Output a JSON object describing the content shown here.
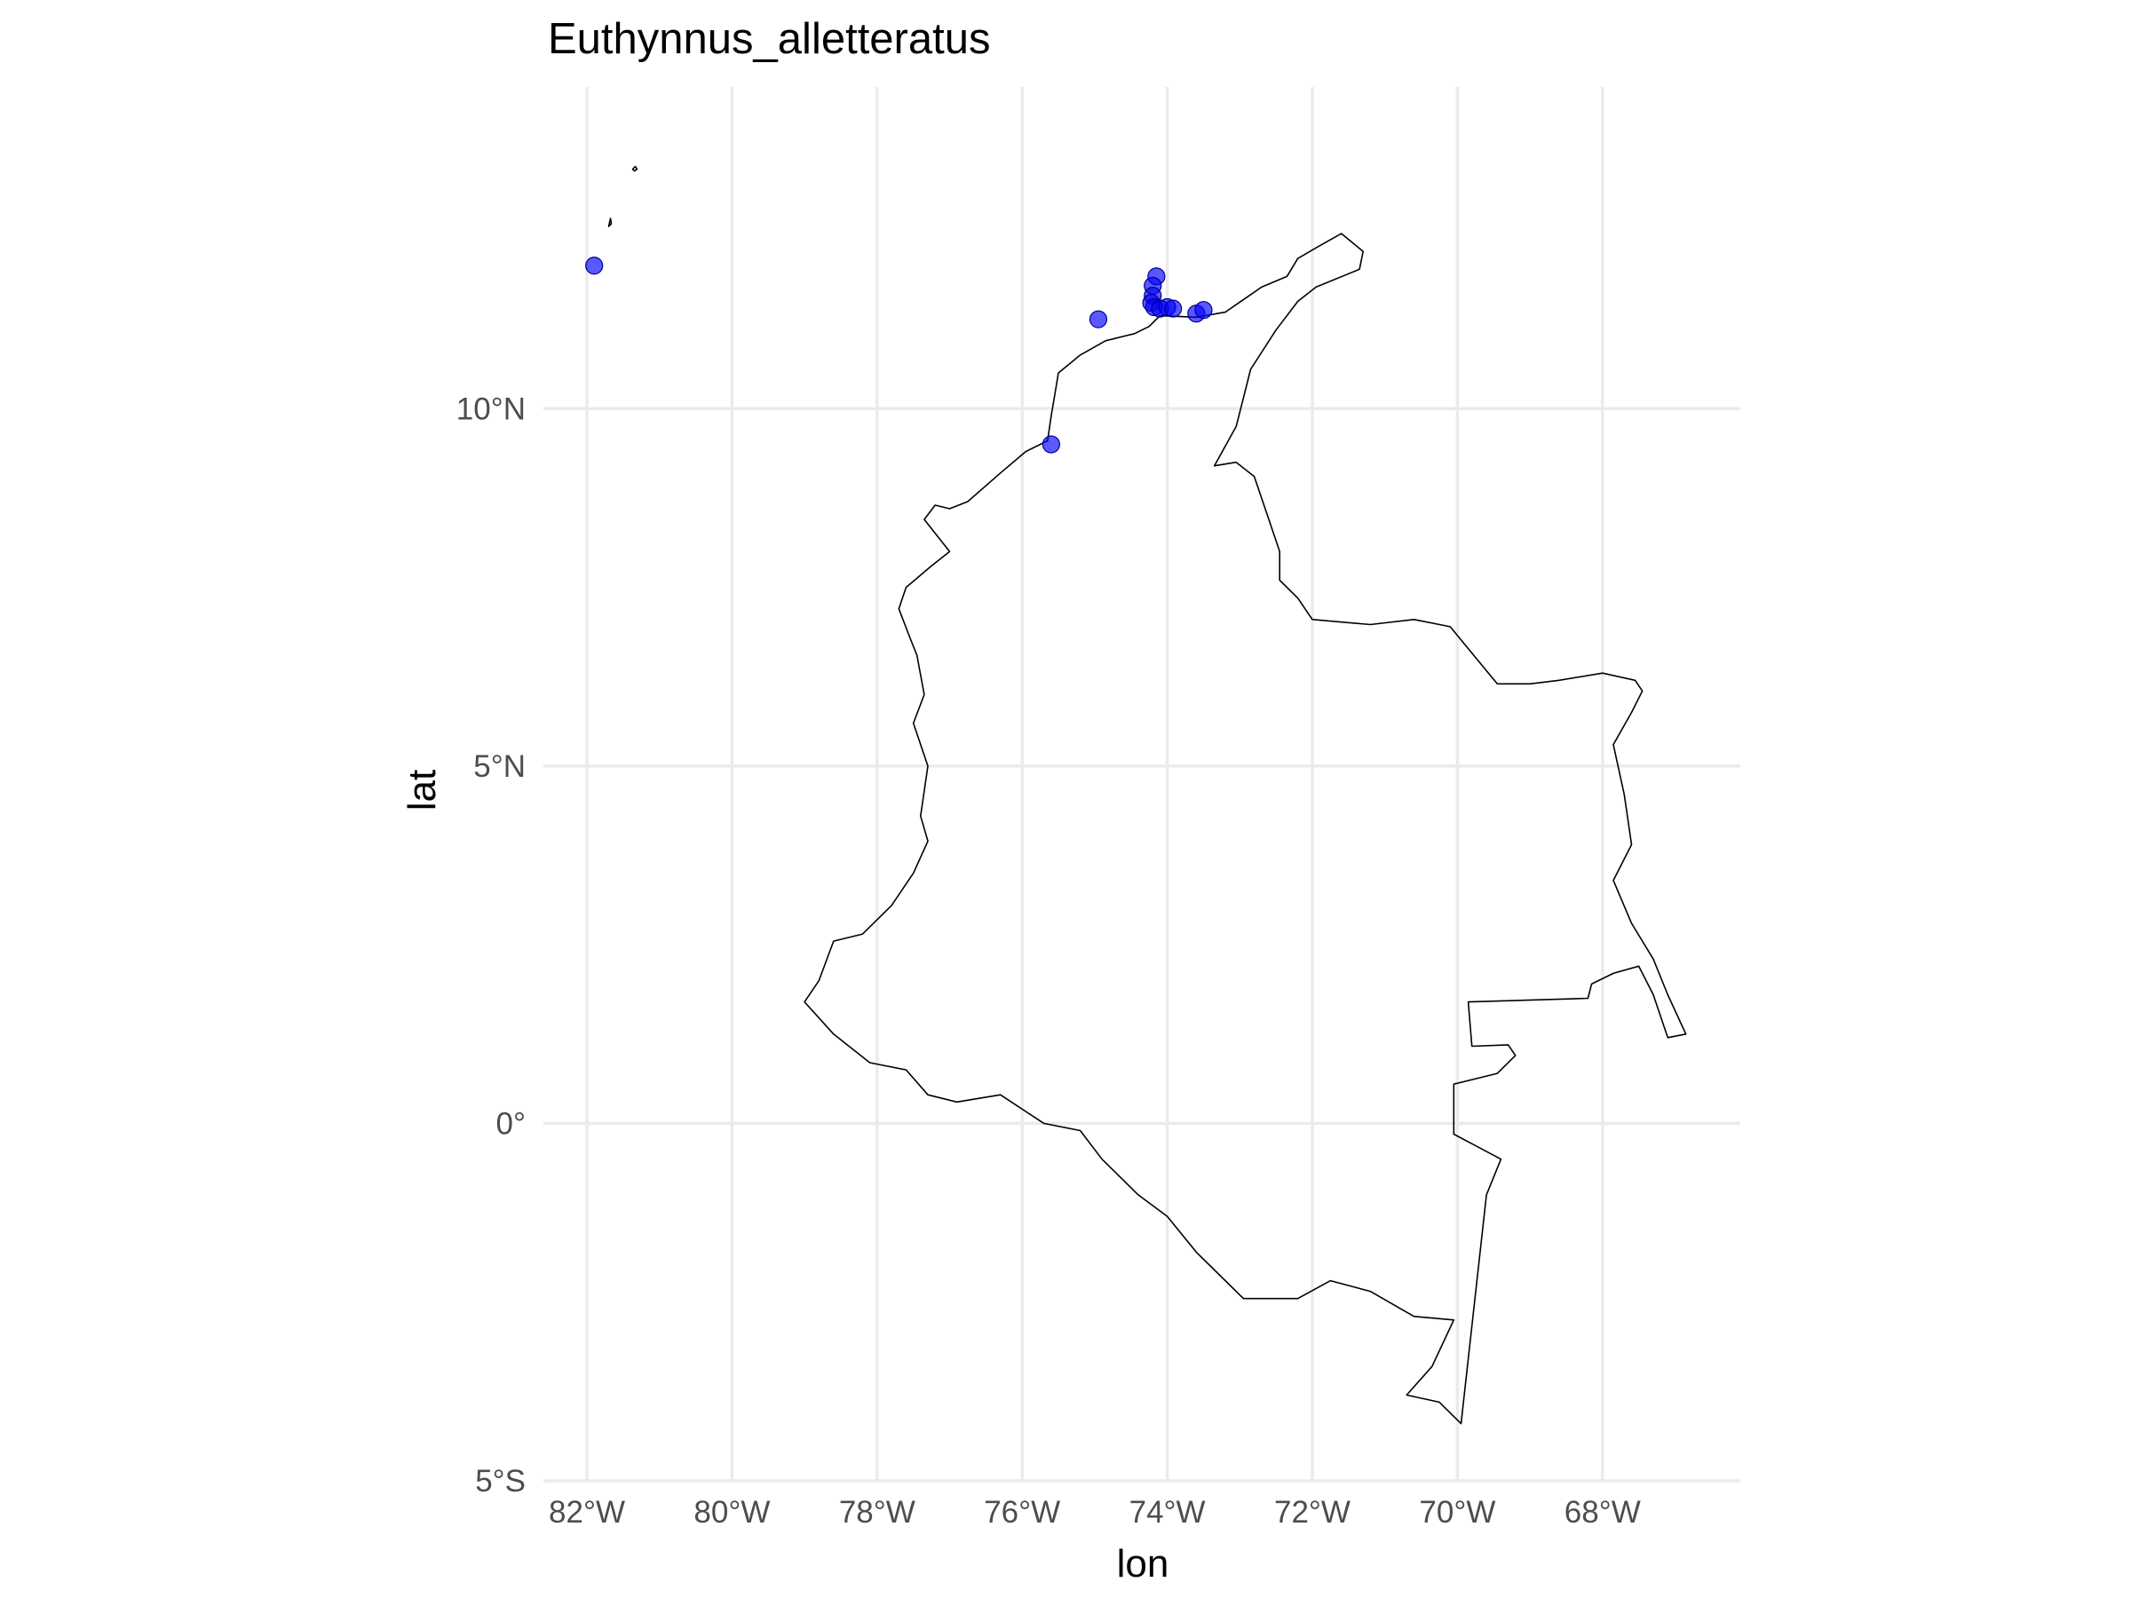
{
  "chart_data": {
    "type": "scatter",
    "title": "Euthynnus_alletteratus",
    "xlabel": "lon",
    "ylabel": "lat",
    "xlim": [
      -82.6,
      -66.1
    ],
    "ylim": [
      -5.0,
      14.5
    ],
    "x_ticks": [
      -82,
      -80,
      -78,
      -76,
      -74,
      -72,
      -70,
      -68
    ],
    "x_tick_labels": [
      "82°W",
      "80°W",
      "78°W",
      "76°W",
      "74°W",
      "72°W",
      "70°W",
      "68°W"
    ],
    "y_ticks": [
      -5,
      0,
      5,
      10
    ],
    "y_tick_labels": [
      "5°S",
      "0°",
      "5°N",
      "10°N"
    ],
    "grid": true,
    "point_color": "#0000ff",
    "points": [
      {
        "lon": -81.9,
        "lat": 12.0
      },
      {
        "lon": -75.6,
        "lat": 9.5
      },
      {
        "lon": -74.95,
        "lat": 11.25
      },
      {
        "lon": -74.15,
        "lat": 11.85
      },
      {
        "lon": -74.2,
        "lat": 11.72
      },
      {
        "lon": -74.2,
        "lat": 11.58
      },
      {
        "lon": -74.22,
        "lat": 11.48
      },
      {
        "lon": -74.18,
        "lat": 11.42
      },
      {
        "lon": -74.1,
        "lat": 11.4
      },
      {
        "lon": -74.0,
        "lat": 11.42
      },
      {
        "lon": -73.92,
        "lat": 11.4
      },
      {
        "lon": -73.6,
        "lat": 11.33
      },
      {
        "lon": -73.5,
        "lat": 11.38
      }
    ],
    "basemap": "Colombia"
  }
}
